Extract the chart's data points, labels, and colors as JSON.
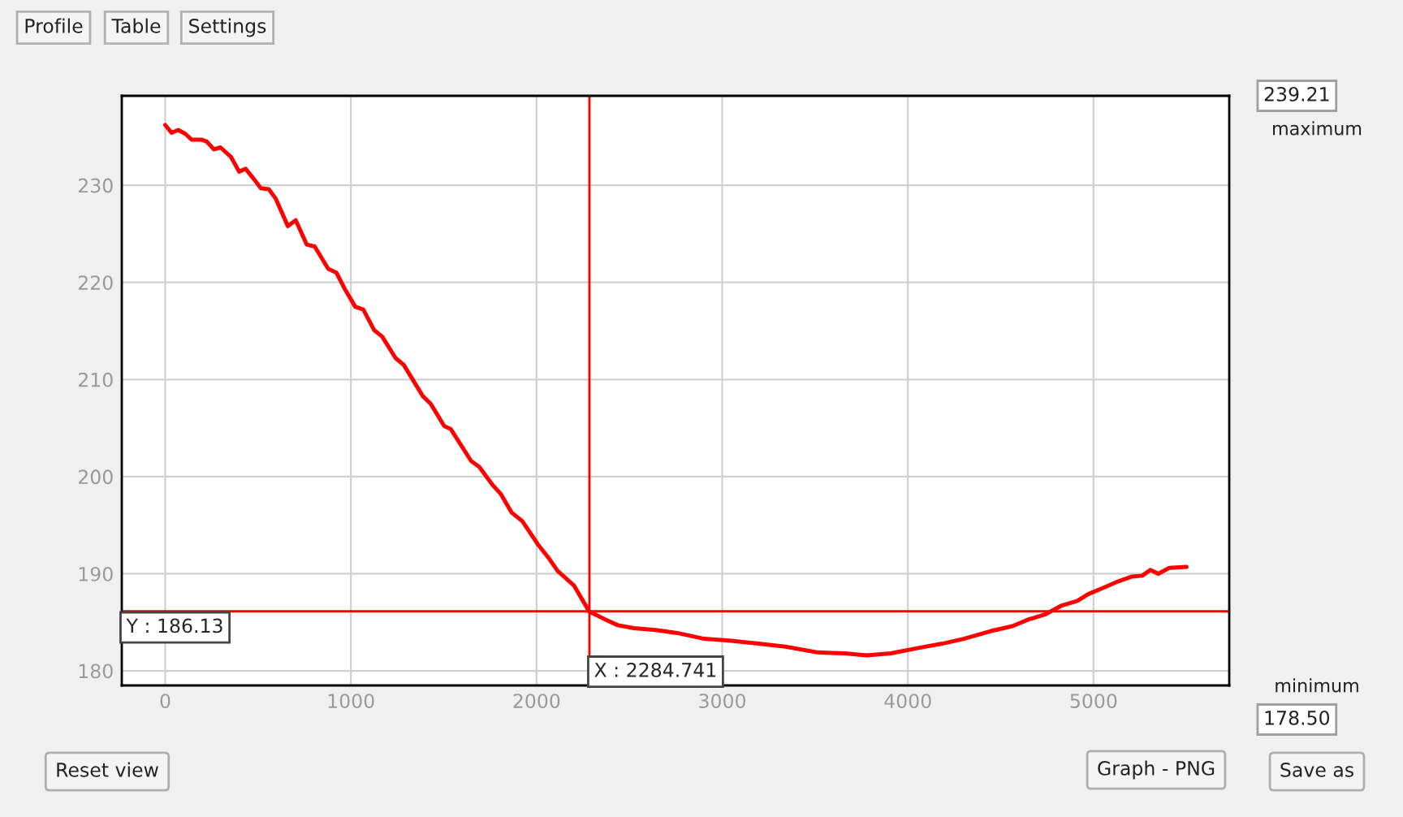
{
  "chart_data": {
    "type": "line",
    "xlim": [
      -234,
      5731
    ],
    "ylim": [
      178.5,
      239.21
    ],
    "xticks": [
      0,
      1000,
      2000,
      3000,
      4000,
      5000
    ],
    "yticks": [
      180,
      190,
      200,
      210,
      220,
      230
    ],
    "grid": true,
    "legend": false,
    "marker": "none",
    "line_style": "solid",
    "series": [
      {
        "color": "#ff0000",
        "x": [
          0,
          35,
          70,
          108,
          142,
          195,
          224,
          262,
          297,
          355,
          398,
          433,
          471,
          515,
          558,
          596,
          660,
          703,
          762,
          805,
          878,
          922,
          965,
          1023,
          1067,
          1125,
          1169,
          1241,
          1285,
          1387,
          1430,
          1503,
          1538,
          1648,
          1692,
          1765,
          1808,
          1866,
          1924,
          2012,
          2070,
          2113,
          2201,
          2284,
          2380,
          2438,
          2525,
          2642,
          2758,
          2904,
          3049,
          3195,
          3341,
          3515,
          3661,
          3777,
          3908,
          4068,
          4185,
          4301,
          4447,
          4563,
          4651,
          4738,
          4825,
          4913,
          4971,
          5058,
          5131,
          5204,
          5262,
          5306,
          5349,
          5408,
          5501
        ],
        "values": [
          236.2,
          235.4,
          235.7,
          235.3,
          234.7,
          234.7,
          234.5,
          233.7,
          233.9,
          232.9,
          231.4,
          231.7,
          230.8,
          229.7,
          229.6,
          228.6,
          225.8,
          226.4,
          223.9,
          223.7,
          221.4,
          221.0,
          219.4,
          217.5,
          217.2,
          215.1,
          214.4,
          212.2,
          211.5,
          208.3,
          207.5,
          205.2,
          204.9,
          201.6,
          201.0,
          199.1,
          198.2,
          196.3,
          195.4,
          192.9,
          191.5,
          190.3,
          188.8,
          186.1,
          185.2,
          184.7,
          184.4,
          184.2,
          183.9,
          183.3,
          183.1,
          182.8,
          182.5,
          181.9,
          181.8,
          181.6,
          181.8,
          182.4,
          182.8,
          183.3,
          184.1,
          184.6,
          185.3,
          185.8,
          186.7,
          187.2,
          187.9,
          188.6,
          189.2,
          189.7,
          189.8,
          190.4,
          190.0,
          190.6,
          190.7
        ]
      }
    ],
    "ref_lines": [
      {
        "axis": "x",
        "value": 2284.741,
        "label": "X : 2284.741",
        "color": "#ff0000"
      },
      {
        "axis": "y",
        "value": 186.13,
        "label": "Y : 186.13",
        "color": "#ff0000"
      }
    ],
    "annotations": [
      "Profile",
      "Table",
      "Settings",
      "239.21",
      "maximum",
      "minimum",
      "178.50",
      "Reset view",
      "Graph - PNG",
      "Save as"
    ]
  }
}
